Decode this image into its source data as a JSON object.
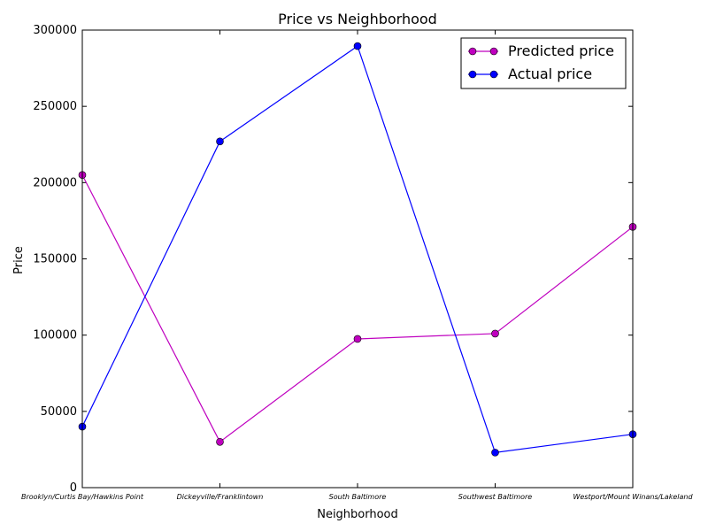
{
  "chart_data": {
    "type": "line",
    "title": "Price vs Neighborhood",
    "xlabel": "Neighborhood",
    "ylabel": "Price",
    "categories": [
      "Brooklyn/Curtis Bay/Hawkins Point",
      "Dickeyville/Franklintown",
      "South Baltimore",
      "Southwest Baltimore",
      "Westport/Mount Winans/Lakeland"
    ],
    "ylim": [
      0,
      300000
    ],
    "yticks": [
      "0",
      "50000",
      "100000",
      "150000",
      "200000",
      "250000",
      "300000"
    ],
    "grid": false,
    "legend_position": "top-right",
    "series": [
      {
        "name": "Predicted price",
        "color": "#bf00bf",
        "values": [
          205000,
          30000,
          97500,
          101000,
          171000
        ]
      },
      {
        "name": "Actual price",
        "color": "#0000ff",
        "values": [
          40000,
          227000,
          289500,
          23000,
          35000
        ]
      }
    ]
  }
}
